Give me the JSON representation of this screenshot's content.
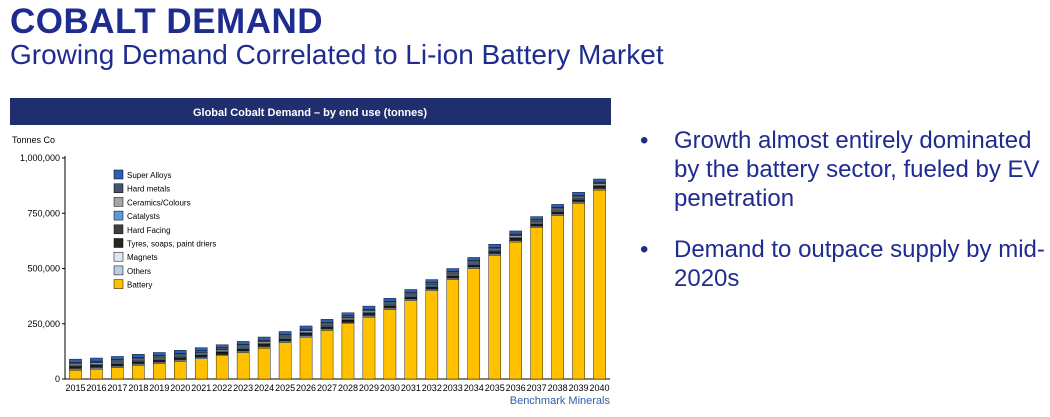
{
  "header": {
    "title": "COBALT DEMAND",
    "subtitle": "Growing Demand Correlated to Li-ion Battery Market"
  },
  "bullets": [
    "Growth almost entirely dominated by the battery sector, fueled by EV penetration",
    "Demand to outpace supply by mid-2020s"
  ],
  "colors": {
    "title": "#1f2c8f",
    "chart_banner": "#1f2f6e"
  },
  "chart_data": {
    "type": "bar",
    "stacked": true,
    "title": "Global Cobalt Demand – by end use (tonnes)",
    "ylabel": "Tonnes Co",
    "source": "Benchmark  Minerals",
    "ylim": [
      0,
      1000000
    ],
    "yticks": [
      0,
      250000,
      500000,
      750000,
      1000000
    ],
    "ytick_labels": [
      "0",
      "250,000",
      "500,000",
      "750,000",
      "1,000,000"
    ],
    "grid": false,
    "legend_position": "top-left",
    "categories": [
      "2015",
      "2016",
      "2017",
      "2018",
      "2019",
      "2020",
      "2021",
      "2022",
      "2023",
      "2024",
      "2025",
      "2026",
      "2027",
      "2028",
      "2029",
      "2030",
      "2031",
      "2032",
      "2033",
      "2034",
      "2035",
      "2036",
      "2037",
      "2038",
      "2039",
      "2040"
    ],
    "series": [
      {
        "name": "Battery",
        "color": "#ffc000",
        "values": [
          40000,
          45000,
          52000,
          62000,
          70000,
          80000,
          92000,
          105000,
          120000,
          140000,
          165000,
          190000,
          220000,
          250000,
          280000,
          315000,
          355000,
          400000,
          450000,
          500000,
          560000,
          620000,
          685000,
          740000,
          795000,
          855000
        ]
      },
      {
        "name": "Others",
        "color": "#b8cce4",
        "values": [
          5000,
          5000,
          5000,
          5000,
          5000,
          5000,
          5000,
          5000,
          5000,
          5000,
          5000,
          5000,
          5000,
          5000,
          5000,
          5000,
          5000,
          5000,
          5000,
          5000,
          5000,
          5000,
          5000,
          5000,
          5000,
          5000
        ]
      },
      {
        "name": "Magnets",
        "color": "#dde6f2",
        "values": [
          3000,
          3000,
          3000,
          3000,
          3000,
          3000,
          3000,
          3000,
          3000,
          3000,
          3000,
          3000,
          3000,
          3000,
          3000,
          3000,
          3000,
          3000,
          3000,
          3000,
          3000,
          3000,
          3000,
          3000,
          3000,
          3000
        ]
      },
      {
        "name": "Tyres, soaps, paint driers",
        "color": "#262626",
        "values": [
          6000,
          6000,
          6000,
          6000,
          6000,
          6000,
          6000,
          6000,
          6000,
          6000,
          6000,
          6000,
          6000,
          6000,
          6000,
          6000,
          6000,
          6000,
          6000,
          6000,
          6000,
          6000,
          6000,
          6000,
          6000,
          6000
        ]
      },
      {
        "name": "Hard Facing",
        "color": "#404040",
        "values": [
          3000,
          3000,
          3000,
          3000,
          3000,
          3000,
          3000,
          3000,
          3000,
          3000,
          3000,
          3000,
          3000,
          3000,
          3000,
          3000,
          3000,
          3000,
          3000,
          3000,
          3000,
          3000,
          3000,
          3000,
          3000,
          3000
        ]
      },
      {
        "name": "Catalysts",
        "color": "#5b9bd5",
        "values": [
          5000,
          5000,
          5000,
          5000,
          5000,
          5000,
          5000,
          5000,
          5000,
          5000,
          5000,
          5000,
          5000,
          5000,
          5000,
          5000,
          5000,
          5000,
          5000,
          5000,
          5000,
          5000,
          5000,
          5000,
          5000,
          5000
        ]
      },
      {
        "name": "Ceramics/Colours",
        "color": "#a6a6a6",
        "values": [
          6000,
          6000,
          6000,
          6000,
          6000,
          6000,
          6000,
          6000,
          6000,
          6000,
          6000,
          6000,
          6000,
          6000,
          6000,
          6000,
          6000,
          6000,
          6000,
          6000,
          6000,
          6000,
          6000,
          6000,
          6000,
          6000
        ]
      },
      {
        "name": "Hard metals",
        "color": "#44546a",
        "values": [
          8000,
          8000,
          8000,
          8000,
          8000,
          8000,
          8000,
          8000,
          8000,
          8000,
          8000,
          8000,
          8000,
          8000,
          8000,
          8000,
          8000,
          8000,
          8000,
          8000,
          8000,
          8000,
          8000,
          8000,
          8000,
          8000
        ]
      },
      {
        "name": "Super Alloys",
        "color": "#2f5fb3",
        "values": [
          14000,
          14000,
          14000,
          14000,
          14000,
          14000,
          14000,
          14000,
          14000,
          14000,
          14000,
          14000,
          14000,
          14000,
          14000,
          14000,
          14000,
          14000,
          14000,
          14000,
          14000,
          14000,
          14000,
          14000,
          14000,
          14000
        ]
      }
    ],
    "legend_order": [
      "Super Alloys",
      "Hard metals",
      "Ceramics/Colours",
      "Catalysts",
      "Hard Facing",
      "Tyres, soaps, paint driers",
      "Magnets",
      "Others",
      "Battery"
    ]
  }
}
